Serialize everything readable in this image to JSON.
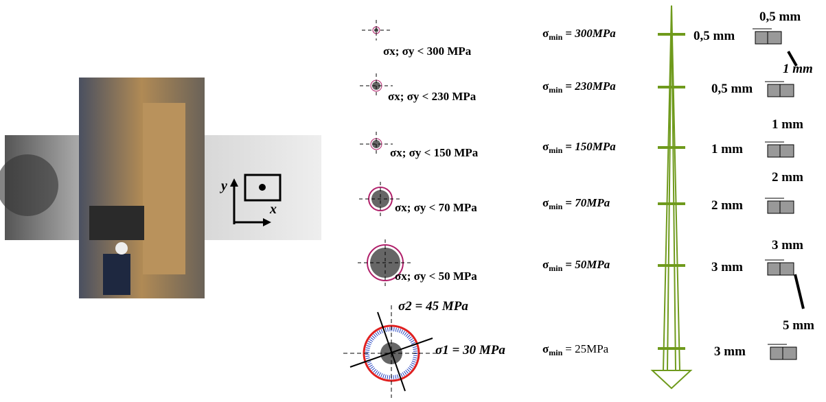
{
  "photo": {
    "axis_x": "x",
    "axis_y": "y"
  },
  "sigma_min_symbol": "σ",
  "sigma_min_sub": "min",
  "rows": [
    {
      "limit": "σx; σy < 300 MPa",
      "min_value": "= 300MPa",
      "depth_top": "0,5 mm",
      "depth_left": "0,5 mm"
    },
    {
      "limit": "σx; σy < 230 MPa",
      "min_value": "= 230MPa",
      "depth_left": "0,5 mm"
    },
    {
      "limit": "σx; σy < 150 MPa",
      "min_value": "= 150MPa",
      "depth_top": "1 mm",
      "depth_left": "1 mm"
    },
    {
      "limit": "σx; σy < 70 MPa",
      "min_value": "= 70MPa",
      "depth_top": "2 mm",
      "depth_left": "2 mm"
    },
    {
      "limit": "σx; σy < 50 MPa",
      "min_value": "= 50MPa",
      "depth_top": "3 mm",
      "depth_left": "3 mm"
    },
    {
      "min_value": "= 25MPa",
      "depth_top": "5 mm",
      "depth_left": "3 mm"
    }
  ],
  "step_note": "1 mm",
  "sigma2": "σ2 = 45 MPa",
  "sigma1": "σ1 = 30 MPa"
}
